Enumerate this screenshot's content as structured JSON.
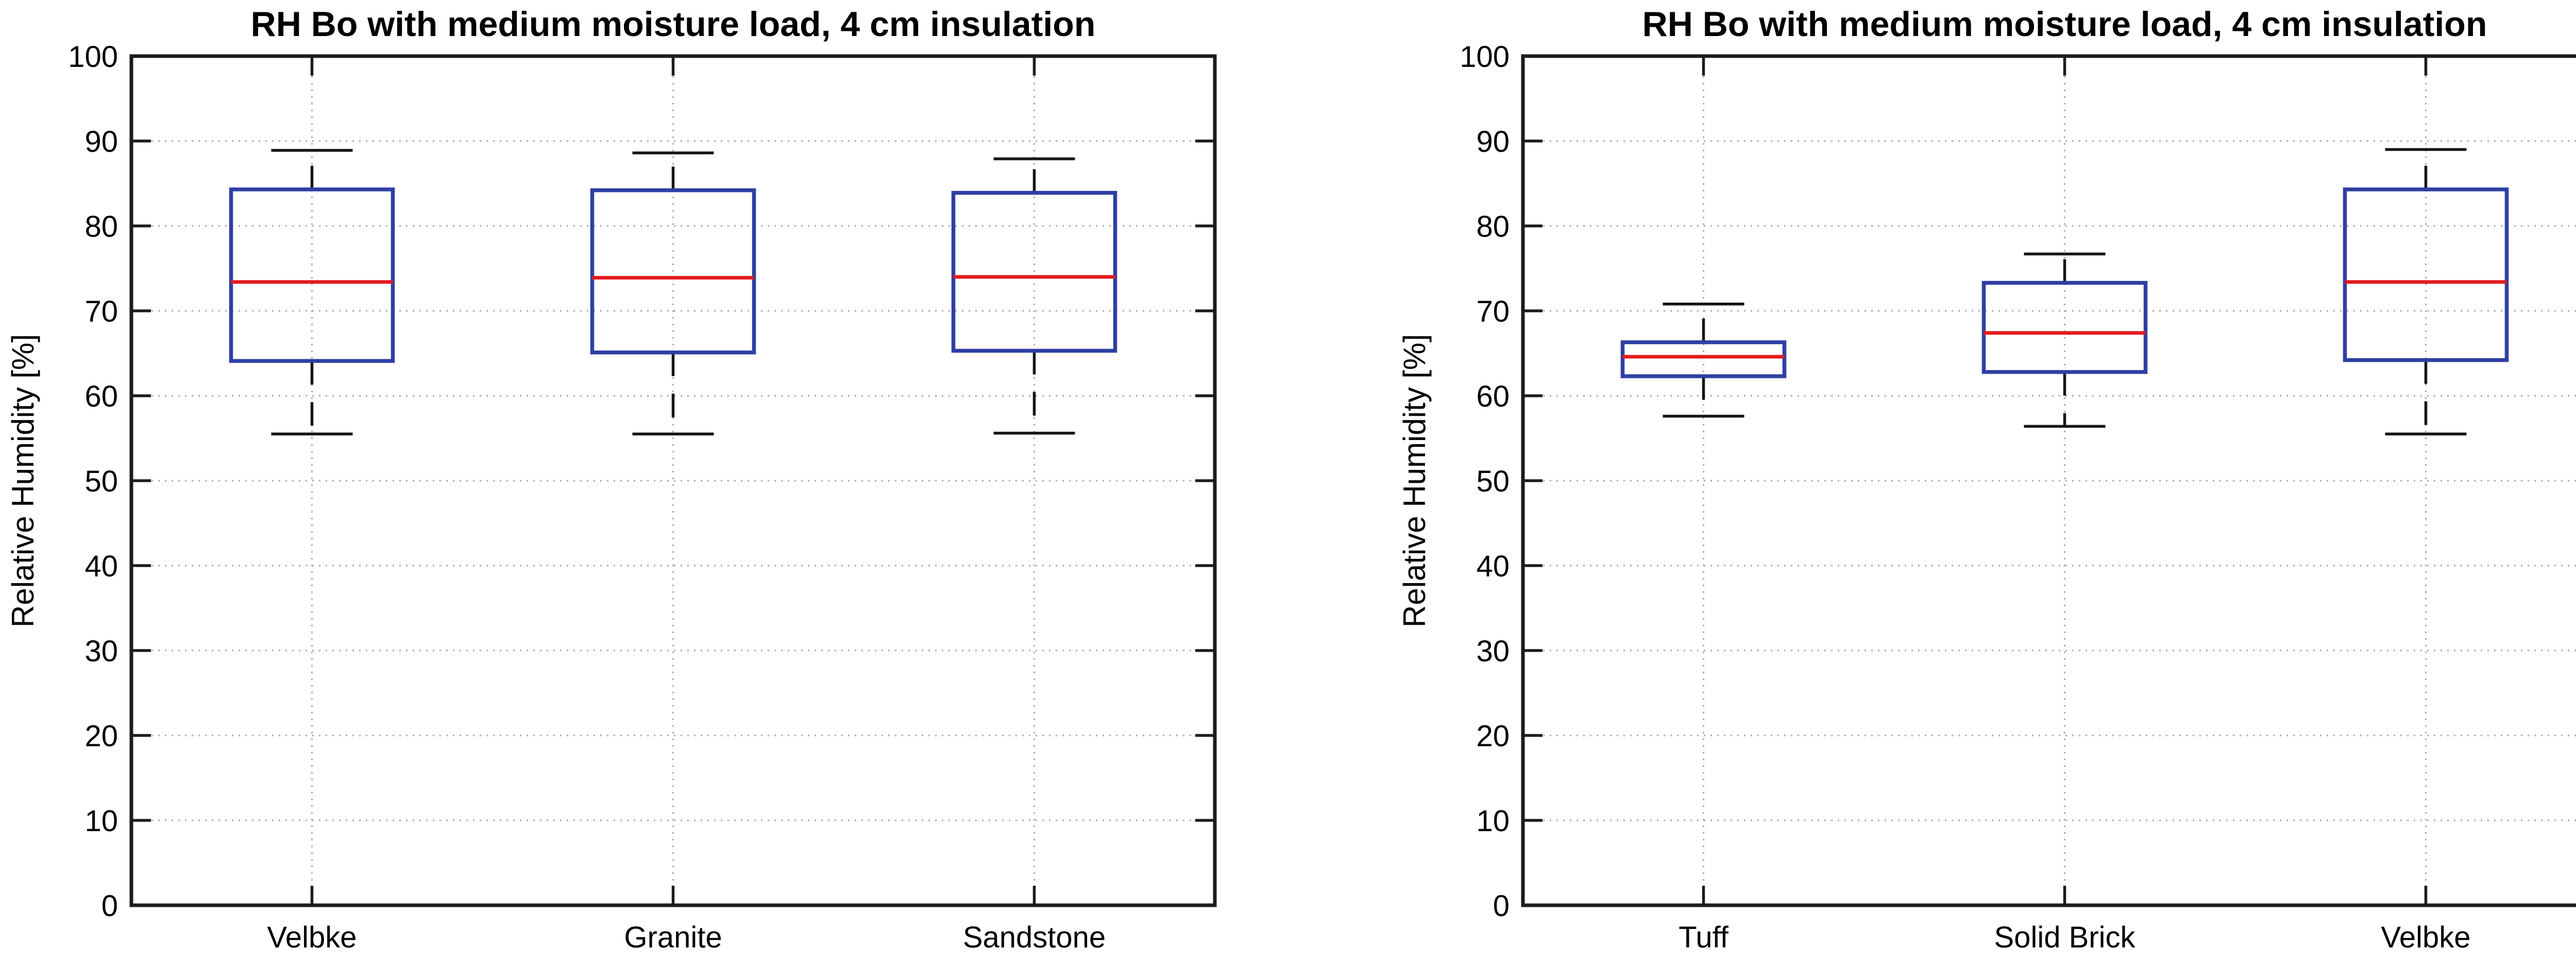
{
  "figure": {
    "background": "#ffffff"
  },
  "colors": {
    "box": "#2e3fa3",
    "median": "#e31b1e",
    "whisker": "#161616",
    "axis": "#1c1c1c",
    "grid": "#a9a9a9",
    "text": "#000000"
  },
  "chart_data": [
    {
      "type": "box",
      "title": "RH Bo with medium moisture load, 4 cm insulation",
      "ylabel": "Relative Humidity [%]",
      "xlabel": "",
      "ylim": [
        0,
        100
      ],
      "grid": true,
      "yticks": [
        0,
        10,
        20,
        30,
        40,
        50,
        60,
        70,
        80,
        90,
        100
      ],
      "categories": [
        "Velbke",
        "Granite",
        "Sandstone"
      ],
      "series": [
        {
          "label": "Velbke",
          "whisker_low": 55.5,
          "q1": 64.1,
          "median": 73.4,
          "q3": 84.3,
          "whisker_high": 88.9
        },
        {
          "label": "Granite",
          "whisker_low": 55.5,
          "q1": 65.1,
          "median": 73.9,
          "q3": 84.2,
          "whisker_high": 88.6
        },
        {
          "label": "Sandstone",
          "whisker_low": 55.6,
          "q1": 65.3,
          "median": 74.0,
          "q3": 83.9,
          "whisker_high": 87.9
        }
      ]
    },
    {
      "type": "box",
      "title": "RH Bo with medium moisture load, 4 cm insulation",
      "ylabel": "Relative Humidity [%]",
      "xlabel": "",
      "ylim": [
        0,
        100
      ],
      "grid": true,
      "yticks": [
        0,
        10,
        20,
        30,
        40,
        50,
        60,
        70,
        80,
        90,
        100
      ],
      "categories": [
        "Tuff",
        "Solid Brick",
        "Velbke"
      ],
      "series": [
        {
          "label": "Tuff",
          "whisker_low": 57.6,
          "q1": 62.3,
          "median": 64.6,
          "q3": 66.3,
          "whisker_high": 70.8
        },
        {
          "label": "Solid Brick",
          "whisker_low": 56.4,
          "q1": 62.8,
          "median": 67.4,
          "q3": 73.3,
          "whisker_high": 76.7
        },
        {
          "label": "Velbke",
          "whisker_low": 55.5,
          "q1": 64.2,
          "median": 73.4,
          "q3": 84.3,
          "whisker_high": 89.0
        }
      ]
    }
  ]
}
